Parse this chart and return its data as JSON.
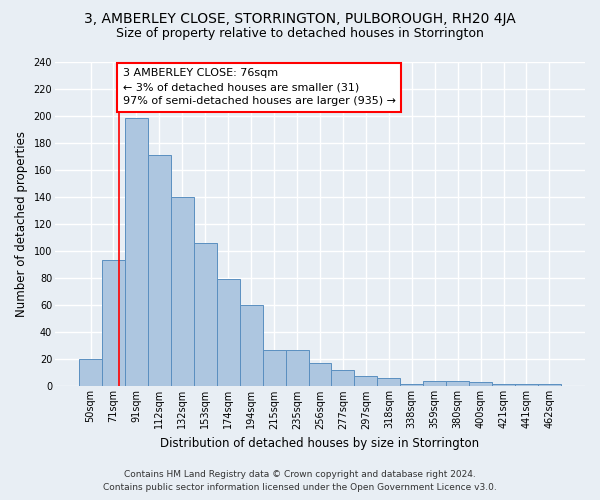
{
  "title1": "3, AMBERLEY CLOSE, STORRINGTON, PULBOROUGH, RH20 4JA",
  "title2": "Size of property relative to detached houses in Storrington",
  "xlabel": "Distribution of detached houses by size in Storrington",
  "ylabel": "Number of detached properties",
  "footer1": "Contains HM Land Registry data © Crown copyright and database right 2024.",
  "footer2": "Contains public sector information licensed under the Open Government Licence v3.0.",
  "bar_labels": [
    "50sqm",
    "71sqm",
    "91sqm",
    "112sqm",
    "132sqm",
    "153sqm",
    "174sqm",
    "194sqm",
    "215sqm",
    "235sqm",
    "256sqm",
    "277sqm",
    "297sqm",
    "318sqm",
    "338sqm",
    "359sqm",
    "380sqm",
    "400sqm",
    "421sqm",
    "441sqm",
    "462sqm"
  ],
  "bar_values": [
    20,
    93,
    198,
    171,
    140,
    106,
    79,
    60,
    27,
    27,
    17,
    12,
    8,
    6,
    2,
    4,
    4,
    3,
    2,
    2,
    2
  ],
  "bar_color": "#adc6e0",
  "bar_edge_color": "#5a8fc0",
  "annotation_text": "3 AMBERLEY CLOSE: 76sqm\n← 3% of detached houses are smaller (31)\n97% of semi-detached houses are larger (935) →",
  "annotation_box_color": "white",
  "annotation_box_edge_color": "red",
  "vline_color": "red",
  "ylim": [
    0,
    240
  ],
  "yticks": [
    0,
    20,
    40,
    60,
    80,
    100,
    120,
    140,
    160,
    180,
    200,
    220,
    240
  ],
  "bg_color": "#e8eef4",
  "plot_bg_color": "#e8eef4",
  "grid_color": "white",
  "title1_fontsize": 10,
  "title2_fontsize": 9,
  "xlabel_fontsize": 8.5,
  "ylabel_fontsize": 8.5,
  "annotation_fontsize": 8,
  "tick_fontsize": 7,
  "footer_fontsize": 6.5
}
